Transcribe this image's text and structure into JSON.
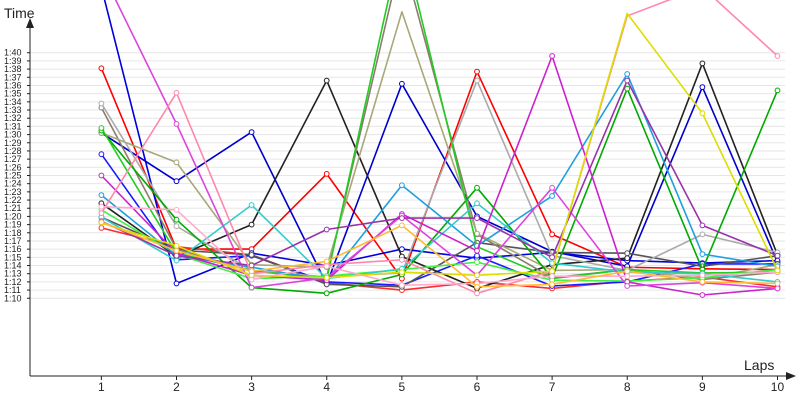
{
  "chart_data": {
    "type": "line",
    "ylabel": "Time",
    "xlabel": "Laps",
    "x": [
      1,
      2,
      3,
      4,
      5,
      6,
      7,
      8,
      9,
      10
    ],
    "xlim": [
      0.05,
      10.1
    ],
    "ylim": [
      60.5,
      104.0
    ],
    "y_ticks": [
      "1:10",
      "1:11",
      "1:12",
      "1:13",
      "1:14",
      "1:15",
      "1:16",
      "1:17",
      "1:18",
      "1:19",
      "1:20",
      "1:21",
      "1:22",
      "1:23",
      "1:24",
      "1:25",
      "1:26",
      "1:27",
      "1:28",
      "1:29",
      "1:30",
      "1:31",
      "1:32",
      "1:33",
      "1:34",
      "1:35",
      "1:36",
      "1:37",
      "1:38",
      "1:39",
      "1:40"
    ],
    "y_tick_values": [
      70,
      71,
      72,
      73,
      74,
      75,
      76,
      77,
      78,
      79,
      80,
      81,
      82,
      83,
      84,
      85,
      86,
      87,
      88,
      89,
      90,
      91,
      92,
      93,
      94,
      95,
      96,
      97,
      98,
      99,
      100
    ],
    "x_tick_labels": [
      "1",
      "2",
      "3",
      "4",
      "5",
      "6",
      "7",
      "8",
      "9",
      "10"
    ],
    "grid": "horizontal",
    "legend": "none",
    "series": [
      {
        "color": "#ff0000",
        "values": [
          98.1,
          76.0,
          76.0,
          85.2,
          72.4,
          97.7,
          77.8,
          73.8,
          73.6,
          73.5
        ]
      },
      {
        "color": "#ff2a2a",
        "values": [
          78.6,
          76.3,
          75.3,
          71.9,
          71.0,
          72.0,
          71.2,
          72.1,
          72.6,
          71.4
        ]
      },
      {
        "color": "#0000cc",
        "values": [
          90.2,
          84.3,
          90.3,
          71.7,
          96.2,
          80.0,
          75.7,
          73.9,
          95.8,
          74.4
        ]
      },
      {
        "color": "#0000dd",
        "values": [
          108.0,
          71.8,
          75.5,
          74.0,
          76.0,
          74.9,
          75.6,
          74.6,
          74.3,
          74.6
        ]
      },
      {
        "color": "#1a1aff",
        "values": [
          87.6,
          74.7,
          75.2,
          72.0,
          71.6,
          75.2,
          71.5,
          72.0,
          74.2,
          74.2
        ]
      },
      {
        "color": "#222222",
        "values": [
          81.6,
          75.1,
          79.0,
          96.6,
          75.1,
          71.2,
          74.1,
          74.9,
          98.7,
          75.3
        ]
      },
      {
        "color": "#555555",
        "values": [
          79.9,
          75.9,
          75.3,
          71.7,
          71.4,
          76.8,
          75.6,
          75.5,
          73.9,
          75.2
        ]
      },
      {
        "color": "#8b7d6b",
        "values": [
          93.3,
          76.0,
          73.3,
          72.6,
          112.0,
          77.8,
          72.5,
          73.5,
          72.3,
          73.2
        ]
      },
      {
        "color": "#a8a878",
        "values": [
          90.2,
          86.6,
          74.1,
          73.8,
          105.0,
          77.9,
          73.4,
          73.5,
          72.4,
          74.1
        ]
      },
      {
        "color": "#aaaaaa",
        "values": [
          93.8,
          78.8,
          73.4,
          72.6,
          73.1,
          96.6,
          75.2,
          73.4,
          77.8,
          75.6
        ]
      },
      {
        "color": "#00aa00",
        "values": [
          90.5,
          79.6,
          71.3,
          70.6,
          72.9,
          83.5,
          72.5,
          95.6,
          73.5,
          95.4
        ]
      },
      {
        "color": "#22cc22",
        "values": [
          90.8,
          75.5,
          73.4,
          72.3,
          114.0,
          76.3,
          72.4,
          73.5,
          73.1,
          73.2
        ]
      },
      {
        "color": "#44ee44",
        "values": [
          80.8,
          75.4,
          72.4,
          72.7,
          73.5,
          74.4,
          72.2,
          72.1,
          72.5,
          73.5
        ]
      },
      {
        "color": "#1e9fe0",
        "values": [
          82.6,
          75.2,
          73.8,
          72.2,
          83.8,
          76.4,
          82.5,
          97.4,
          75.4,
          73.9
        ]
      },
      {
        "color": "#33cccc",
        "values": [
          79.9,
          74.6,
          81.4,
          72.4,
          73.6,
          81.6,
          74.3,
          73.2,
          73.0,
          72.0
        ]
      },
      {
        "color": "#cc22cc",
        "values": [
          85.0,
          75.5,
          72.8,
          72.2,
          80.3,
          75.8,
          99.6,
          72.0,
          70.4,
          71.2
        ]
      },
      {
        "color": "#dd44dd",
        "values": [
          110.0,
          91.3,
          71.3,
          72.5,
          80.1,
          72.8,
          83.5,
          71.5,
          71.9,
          71.2
        ]
      },
      {
        "color": "#9933aa",
        "values": [
          79.4,
          75.2,
          74.0,
          78.4,
          79.8,
          79.8,
          75.0,
          96.6,
          78.9,
          75.2
        ]
      },
      {
        "color": "#ff88aa",
        "values": [
          80.4,
          95.1,
          73.0,
          74.1,
          74.7,
          70.6,
          73.3,
          104.5,
          108.0,
          99.6
        ]
      },
      {
        "color": "#ffaacc",
        "values": [
          81.2,
          80.8,
          72.3,
          73.9,
          71.6,
          71.8,
          72.7,
          72.7,
          72.8,
          73.2
        ]
      },
      {
        "color": "#dddd00",
        "values": [
          79.2,
          76.4,
          72.8,
          72.5,
          73.2,
          72.8,
          73.3,
          104.8,
          92.6,
          73.4
        ]
      },
      {
        "color": "#ffbb33",
        "values": [
          79.3,
          75.8,
          73.3,
          74.5,
          78.9,
          71.4,
          71.7,
          73.3,
          72.0,
          71.8
        ]
      }
    ]
  }
}
